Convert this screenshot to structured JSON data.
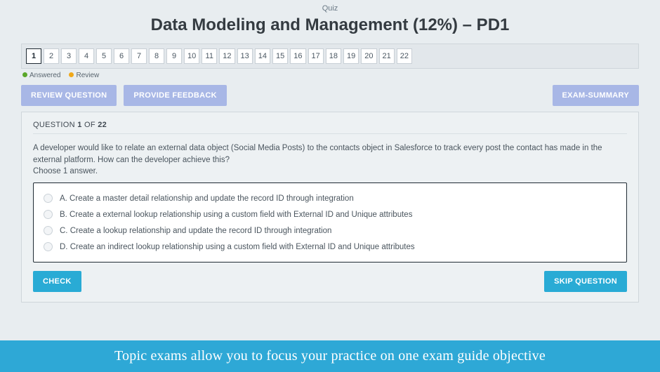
{
  "header": {
    "quiz_label": "Quiz",
    "title": "Data Modeling and Management (12%) – PD1"
  },
  "nav": {
    "items": [
      "1",
      "2",
      "3",
      "4",
      "5",
      "6",
      "7",
      "8",
      "9",
      "10",
      "11",
      "12",
      "13",
      "14",
      "15",
      "16",
      "17",
      "18",
      "19",
      "20",
      "21",
      "22"
    ],
    "active_index": 0
  },
  "legend": {
    "answered": "Answered",
    "review": "Review"
  },
  "buttons": {
    "review": "REVIEW QUESTION",
    "feedback": "PROVIDE FEEDBACK",
    "summary": "EXAM-SUMMARY",
    "check": "CHECK",
    "skip": "SKIP QUESTION"
  },
  "question": {
    "label_prefix": "QUESTION ",
    "current": "1",
    "of_word": " OF ",
    "total": "22",
    "text": "A developer would like to relate an external data object (Social Media Posts) to the contacts object in Salesforce to track every post the contact has made in the external platform. How can the developer achieve this?",
    "instruction": "Choose 1 answer.",
    "answers": [
      "A. Create a master detail relationship and update the record ID through integration",
      "B. Create a external lookup relationship using a custom field with External ID and Unique attributes",
      "C. Create a lookup relationship and update the record ID through integration",
      "D. Create an indirect lookup relationship using a custom field with External ID and Unique attributes"
    ]
  },
  "banner": "Topic exams allow you to focus your practice on one exam guide objective"
}
